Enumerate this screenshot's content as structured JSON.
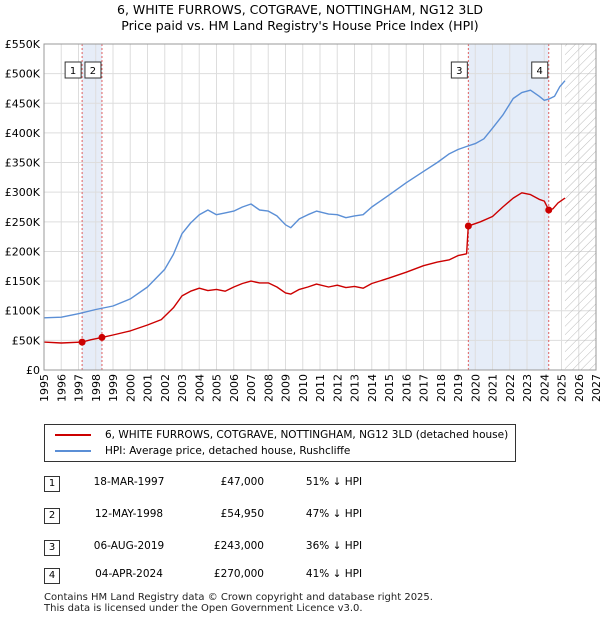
{
  "chart_data": {
    "type": "line",
    "title": "6, WHITE FURROWS, COTGRAVE, NOTTINGHAM, NG12 3LD",
    "subtitle": "Price paid vs. HM Land Registry's House Price Index (HPI)",
    "xlim": [
      1995,
      2027
    ],
    "ylim": [
      0,
      550000
    ],
    "x_ticks": [
      1995,
      1996,
      1997,
      1998,
      1999,
      2000,
      2001,
      2002,
      2003,
      2004,
      2005,
      2006,
      2007,
      2008,
      2009,
      2010,
      2011,
      2012,
      2013,
      2014,
      2015,
      2016,
      2017,
      2018,
      2019,
      2020,
      2021,
      2022,
      2023,
      2024,
      2025,
      2026,
      2027
    ],
    "y_ticks": [
      0,
      50000,
      100000,
      150000,
      200000,
      250000,
      300000,
      350000,
      400000,
      450000,
      500000,
      550000
    ],
    "y_tick_labels": [
      "£0",
      "£50K",
      "£100K",
      "£150K",
      "£200K",
      "£250K",
      "£300K",
      "£350K",
      "£400K",
      "£450K",
      "£500K",
      "£550K"
    ],
    "grid": true,
    "shaded_sale_bands": [
      [
        1997.21,
        1998.36
      ],
      [
        2019.6,
        2024.26
      ]
    ],
    "future_hatch_start": 2025.2,
    "series": [
      {
        "name": "6, WHITE FURROWS, COTGRAVE, NOTTINGHAM, NG12 3LD (detached house)",
        "color": "#cc0000",
        "points": [
          [
            1995.0,
            47000
          ],
          [
            1996.0,
            45500
          ],
          [
            1997.21,
            47000
          ],
          [
            1997.7,
            51000
          ],
          [
            1998.36,
            54950
          ],
          [
            1999.0,
            59000
          ],
          [
            2000.0,
            66000
          ],
          [
            2001.0,
            76000
          ],
          [
            2001.8,
            85000
          ],
          [
            2002.5,
            105000
          ],
          [
            2003.0,
            125000
          ],
          [
            2003.5,
            133000
          ],
          [
            2004.0,
            138000
          ],
          [
            2004.5,
            134000
          ],
          [
            2005.0,
            136000
          ],
          [
            2005.5,
            133000
          ],
          [
            2006.0,
            140000
          ],
          [
            2006.5,
            146000
          ],
          [
            2007.0,
            150000
          ],
          [
            2007.5,
            147000
          ],
          [
            2008.0,
            147000
          ],
          [
            2008.5,
            140000
          ],
          [
            2009.0,
            130000
          ],
          [
            2009.3,
            128000
          ],
          [
            2009.8,
            136000
          ],
          [
            2010.3,
            140000
          ],
          [
            2010.8,
            145000
          ],
          [
            2011.5,
            140000
          ],
          [
            2012.0,
            143000
          ],
          [
            2012.5,
            139000
          ],
          [
            2013.0,
            141000
          ],
          [
            2013.5,
            138000
          ],
          [
            2014.0,
            146000
          ],
          [
            2015.0,
            155000
          ],
          [
            2016.0,
            165000
          ],
          [
            2017.0,
            176000
          ],
          [
            2017.8,
            182000
          ],
          [
            2018.5,
            186000
          ],
          [
            2019.0,
            193000
          ],
          [
            2019.5,
            196000
          ],
          [
            2019.6,
            243000
          ],
          [
            2019.8,
            245000
          ],
          [
            2020.3,
            250000
          ],
          [
            2021.0,
            259000
          ],
          [
            2021.6,
            275000
          ],
          [
            2022.2,
            290000
          ],
          [
            2022.7,
            299000
          ],
          [
            2023.2,
            296000
          ],
          [
            2023.7,
            288000
          ],
          [
            2024.0,
            285000
          ],
          [
            2024.26,
            270000
          ],
          [
            2024.5,
            272000
          ],
          [
            2024.8,
            282000
          ],
          [
            2025.2,
            290000
          ]
        ]
      },
      {
        "name": "HPI: Average price, detached house, Rushcliffe",
        "color": "#5b8fd6",
        "points": [
          [
            1995.0,
            88000
          ],
          [
            1996.0,
            89000
          ],
          [
            1997.0,
            95000
          ],
          [
            1998.0,
            102000
          ],
          [
            1999.0,
            108000
          ],
          [
            2000.0,
            120000
          ],
          [
            2001.0,
            140000
          ],
          [
            2002.0,
            170000
          ],
          [
            2002.5,
            195000
          ],
          [
            2003.0,
            230000
          ],
          [
            2003.5,
            248000
          ],
          [
            2004.0,
            262000
          ],
          [
            2004.5,
            270000
          ],
          [
            2005.0,
            262000
          ],
          [
            2005.5,
            265000
          ],
          [
            2006.0,
            268000
          ],
          [
            2006.5,
            275000
          ],
          [
            2007.0,
            280000
          ],
          [
            2007.5,
            270000
          ],
          [
            2008.0,
            268000
          ],
          [
            2008.5,
            260000
          ],
          [
            2009.0,
            245000
          ],
          [
            2009.3,
            240000
          ],
          [
            2009.8,
            255000
          ],
          [
            2010.3,
            262000
          ],
          [
            2010.8,
            268000
          ],
          [
            2011.5,
            263000
          ],
          [
            2012.0,
            262000
          ],
          [
            2012.5,
            257000
          ],
          [
            2013.0,
            260000
          ],
          [
            2013.5,
            262000
          ],
          [
            2014.0,
            275000
          ],
          [
            2015.0,
            295000
          ],
          [
            2016.0,
            316000
          ],
          [
            2017.0,
            335000
          ],
          [
            2017.8,
            350000
          ],
          [
            2018.5,
            365000
          ],
          [
            2019.0,
            372000
          ],
          [
            2019.6,
            378000
          ],
          [
            2020.0,
            382000
          ],
          [
            2020.5,
            390000
          ],
          [
            2021.0,
            408000
          ],
          [
            2021.6,
            430000
          ],
          [
            2022.2,
            458000
          ],
          [
            2022.7,
            468000
          ],
          [
            2023.2,
            472000
          ],
          [
            2023.7,
            462000
          ],
          [
            2024.0,
            455000
          ],
          [
            2024.26,
            457000
          ],
          [
            2024.6,
            462000
          ],
          [
            2024.9,
            478000
          ],
          [
            2025.2,
            488000
          ]
        ]
      }
    ],
    "markers": [
      {
        "label": "1",
        "x": 1997.21,
        "y": 47000
      },
      {
        "label": "2",
        "x": 1998.36,
        "y": 54950
      },
      {
        "label": "3",
        "x": 2019.6,
        "y": 243000
      },
      {
        "label": "4",
        "x": 2024.26,
        "y": 270000
      }
    ]
  },
  "legend": {
    "property_label": "6, WHITE FURROWS, COTGRAVE, NOTTINGHAM, NG12 3LD (detached house)",
    "hpi_label": "HPI: Average price, detached house, Rushcliffe"
  },
  "transactions": [
    {
      "num": "1",
      "date": "18-MAR-1997",
      "price": "£47,000",
      "hpi": "51% ↓ HPI"
    },
    {
      "num": "2",
      "date": "12-MAY-1998",
      "price": "£54,950",
      "hpi": "47% ↓ HPI"
    },
    {
      "num": "3",
      "date": "06-AUG-2019",
      "price": "£243,000",
      "hpi": "36% ↓ HPI"
    },
    {
      "num": "4",
      "date": "04-APR-2024",
      "price": "£270,000",
      "hpi": "41% ↓ HPI"
    }
  ],
  "footer": {
    "line1": "Contains HM Land Registry data © Crown copyright and database right 2025.",
    "line2": "This data is licensed under the Open Government Licence v3.0."
  }
}
